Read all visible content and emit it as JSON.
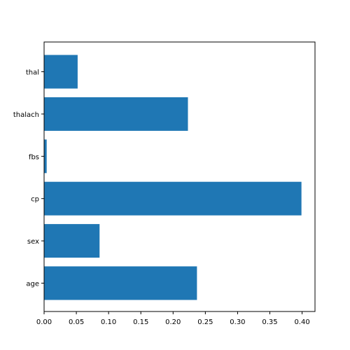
{
  "chart_data": {
    "type": "bar",
    "orientation": "horizontal",
    "title": "",
    "xlabel": "",
    "ylabel": "",
    "categories": [
      "age",
      "sex",
      "cp",
      "fbs",
      "thalach",
      "thal"
    ],
    "values": [
      0.237,
      0.086,
      0.399,
      0.004,
      0.223,
      0.052
    ],
    "xlim": [
      0.0,
      0.42
    ],
    "xticks": [
      0.0,
      0.05,
      0.1,
      0.15,
      0.2,
      0.25,
      0.3,
      0.35,
      0.4
    ],
    "xtick_labels": [
      "0.00",
      "0.05",
      "0.10",
      "0.15",
      "0.20",
      "0.25",
      "0.30",
      "0.35",
      "0.40"
    ],
    "grid": false,
    "legend": "none",
    "bar_color": "#1f77b4"
  }
}
